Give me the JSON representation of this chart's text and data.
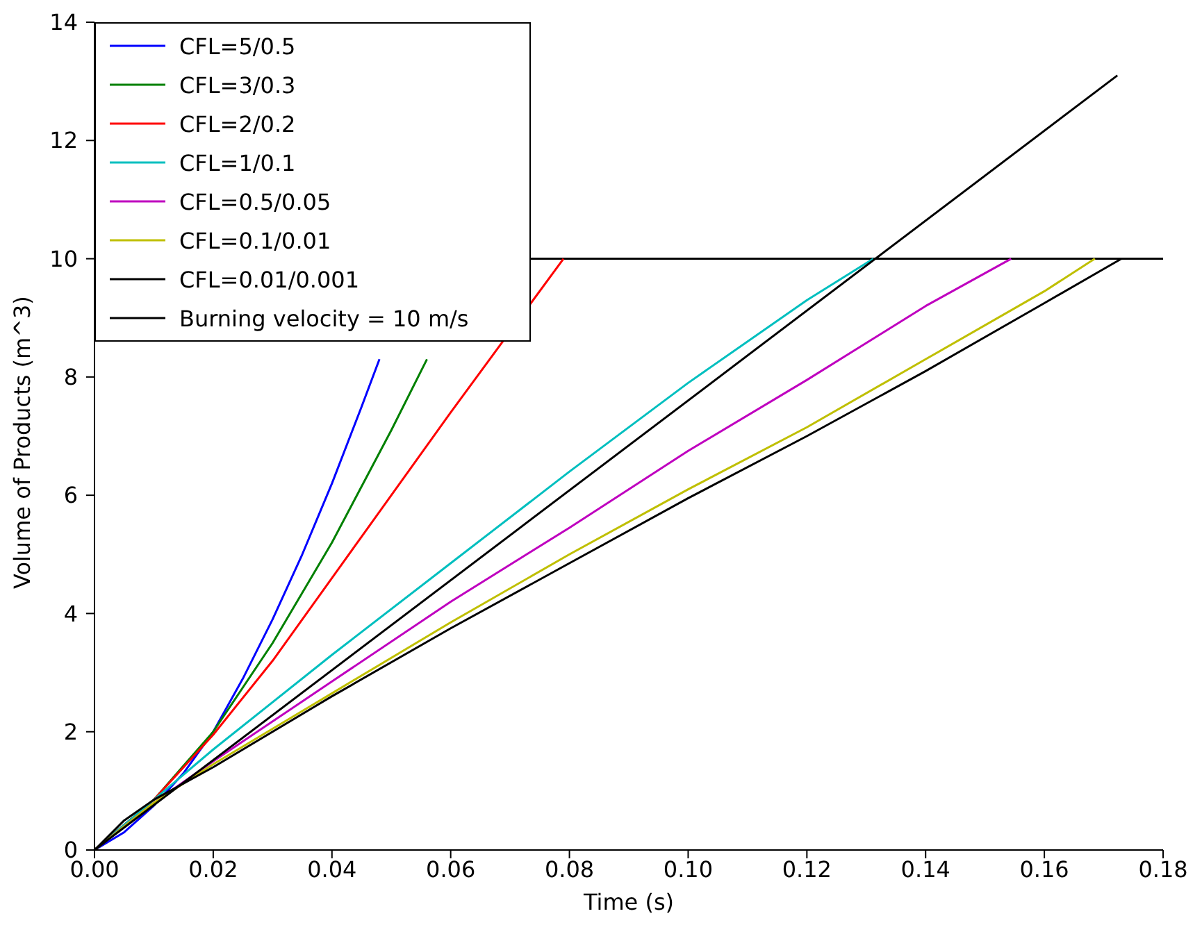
{
  "chart_data": {
    "type": "line",
    "xlabel": "Time (s)",
    "ylabel": "Volume of Products (m^3)",
    "xlim": [
      0,
      0.18
    ],
    "ylim": [
      0,
      14
    ],
    "xticks": [
      {
        "value": 0,
        "label": "0.00"
      },
      {
        "value": 0.02,
        "label": "0.02"
      },
      {
        "value": 0.04,
        "label": "0.04"
      },
      {
        "value": 0.06,
        "label": "0.06"
      },
      {
        "value": 0.08,
        "label": "0.08"
      },
      {
        "value": 0.1,
        "label": "0.10"
      },
      {
        "value": 0.12,
        "label": "0.12"
      },
      {
        "value": 0.14,
        "label": "0.14"
      },
      {
        "value": 0.16,
        "label": "0.16"
      },
      {
        "value": 0.18,
        "label": "0.18"
      }
    ],
    "yticks": [
      0,
      2,
      4,
      6,
      8,
      10,
      12,
      14
    ],
    "grid": false,
    "legend": "top left",
    "marker": "none",
    "line_style": "solid",
    "ref_lines": [
      {
        "axis": "y",
        "value": 10,
        "color": "#000000"
      }
    ],
    "series": [
      {
        "name": "CFL=5/0.5",
        "color": "#0000ff",
        "x": [
          0,
          0.005,
          0.01,
          0.015,
          0.02,
          0.025,
          0.03,
          0.035,
          0.04,
          0.045,
          0.048
        ],
        "values": [
          0,
          0.3,
          0.75,
          1.3,
          2.0,
          2.9,
          3.9,
          5.0,
          6.2,
          7.5,
          8.3
        ]
      },
      {
        "name": "CFL=3/0.3",
        "color": "#008000",
        "x": [
          0,
          0.01,
          0.02,
          0.03,
          0.04,
          0.05,
          0.056
        ],
        "values": [
          0,
          0.85,
          2.0,
          3.5,
          5.2,
          7.1,
          8.3
        ]
      },
      {
        "name": "CFL=2/0.2",
        "color": "#ff0000",
        "x": [
          0,
          0.01,
          0.02,
          0.03,
          0.04,
          0.05,
          0.06,
          0.079
        ],
        "values": [
          0,
          0.85,
          1.95,
          3.2,
          4.6,
          6.0,
          7.4,
          10
        ]
      },
      {
        "name": "CFL=1/0.1",
        "color": "#00bfbf",
        "x": [
          0,
          0.01,
          0.02,
          0.04,
          0.06,
          0.08,
          0.1,
          0.12,
          0.1312
        ],
        "values": [
          0,
          0.85,
          1.7,
          3.3,
          4.85,
          6.4,
          7.9,
          9.3,
          10
        ]
      },
      {
        "name": "CFL=0.5/0.05",
        "color": "#bf00bf",
        "x": [
          0,
          0.01,
          0.02,
          0.04,
          0.06,
          0.08,
          0.1,
          0.12,
          0.14,
          0.1544
        ],
        "values": [
          0,
          0.8,
          1.5,
          2.85,
          4.2,
          5.45,
          6.75,
          7.95,
          9.2,
          10
        ]
      },
      {
        "name": "CFL=0.1/0.01",
        "color": "#bfbf00",
        "x": [
          0,
          0.01,
          0.02,
          0.04,
          0.06,
          0.08,
          0.1,
          0.12,
          0.14,
          0.16,
          0.1685
        ],
        "values": [
          0,
          0.8,
          1.45,
          2.65,
          3.85,
          5.0,
          6.1,
          7.15,
          8.3,
          9.45,
          10
        ]
      },
      {
        "name": "CFL=0.01/0.001",
        "color": "#000000",
        "x": [
          0,
          0.005,
          0.01,
          0.02,
          0.04,
          0.06,
          0.08,
          0.1,
          0.12,
          0.14,
          0.16,
          0.173
        ],
        "values": [
          0,
          0.5,
          0.85,
          1.4,
          2.6,
          3.75,
          4.85,
          5.95,
          7.0,
          8.1,
          9.25,
          10
        ]
      },
      {
        "name": "Burning velocity = 10 m/s",
        "color": "#000000",
        "x": [
          0,
          0.1723
        ],
        "values": [
          0,
          13.1
        ]
      }
    ]
  }
}
